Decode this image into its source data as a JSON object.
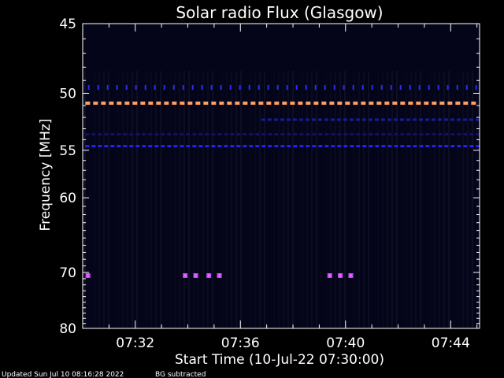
{
  "chart_data": {
    "type": "heatmap",
    "title": "Solar radio Flux (Glasgow)",
    "ylabel": "Frequency [MHz]",
    "xlabel": "Start Time (10-Jul-22 07:30:00)",
    "x_unit": "minutes after 07:30",
    "xlim": [
      0,
      15.1
    ],
    "ylim": [
      45,
      80
    ],
    "y_scale": "reciprocal",
    "x_ticks": [
      "07:32",
      "07:36",
      "07:40",
      "07:44"
    ],
    "x_tick_values": [
      2,
      6,
      10,
      14
    ],
    "y_ticks": [
      45,
      50,
      55,
      60,
      70,
      80
    ],
    "grid": false,
    "bands": [
      {
        "freq": 49.6,
        "from": 0.2,
        "to": 15.0,
        "color": "#2b2bff",
        "style": "sparse-dots"
      },
      {
        "freq": 50.8,
        "from": 0.1,
        "to": 15.0,
        "color": "#ffa060",
        "style": "dashes"
      },
      {
        "freq": 52.2,
        "from": 6.8,
        "to": 15.0,
        "color": "#1a1a9a",
        "style": "dashes"
      },
      {
        "freq": 53.5,
        "from": 0.1,
        "to": 15.0,
        "color": "#111166",
        "style": "dashes"
      },
      {
        "freq": 54.6,
        "from": 0.1,
        "to": 15.0,
        "color": "#2222ee",
        "style": "dashes"
      }
    ],
    "bursts": [
      {
        "freq": 70.5,
        "times": [
          0.2,
          3.9,
          4.3,
          4.8,
          5.2,
          9.4,
          9.8,
          10.2
        ],
        "color": "#c050ff"
      }
    ],
    "background_color": "#05051a"
  },
  "footer": {
    "updated": "Updated Sun Jul 10 08:16:28 2022",
    "note": "BG subtracted"
  }
}
